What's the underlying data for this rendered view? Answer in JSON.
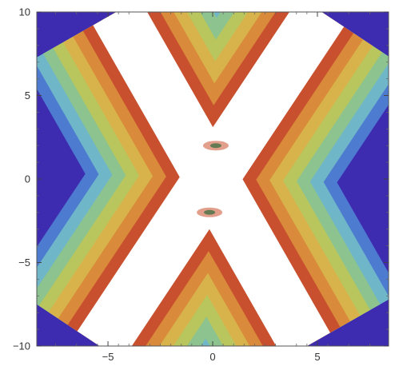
{
  "chart_data": {
    "type": "heatmap",
    "title": "",
    "xlabel": "",
    "ylabel": "",
    "xlim": [
      -8.4,
      8.4
    ],
    "ylim": [
      -10,
      10
    ],
    "x_ticks": [
      -5,
      0,
      5
    ],
    "y_ticks": [
      10,
      5,
      0,
      -5,
      -10
    ],
    "x_tick_labels": [
      "−5",
      "0",
      "5"
    ],
    "y_tick_labels": [
      "10",
      "5",
      "0",
      "−5",
      "−10"
    ],
    "grid": false,
    "legend": "none",
    "structure": {
      "shape": "two crossing ridges forming an X",
      "ridge_a": {
        "x_at_y_top": -4.6,
        "x_at_y_bottom": 4.5
      },
      "ridge_b": {
        "x_at_y_top": 5.2,
        "x_at_y_bottom": -5.4
      },
      "crossing_point": [
        0.0,
        0.0
      ],
      "ridge_width": 1.6
    },
    "contour_bands_outer_to_inner": [
      "#3E2CB0",
      "#4C7BD0",
      "#6FB7C8",
      "#8CC38E",
      "#B9C65E",
      "#D8B24A",
      "#D98A3A",
      "#C8502E",
      "#FFFFFF"
    ]
  }
}
